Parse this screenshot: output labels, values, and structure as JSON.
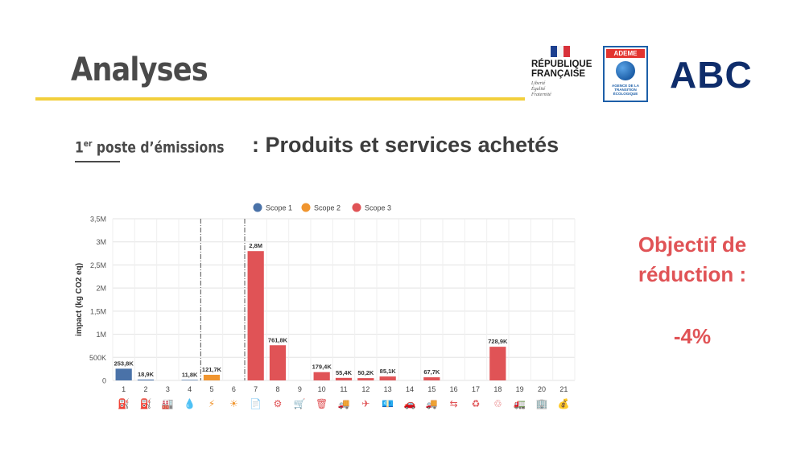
{
  "header": {
    "title": "Analyses",
    "logos": {
      "republique_lines": [
        "RÉPUBLIQUE",
        "FRANÇAISE"
      ],
      "republique_motto": [
        "Liberté",
        "Égalité",
        "Fraternité"
      ],
      "ademe_label": "ADEME",
      "ademe_sub": [
        "AGENCE DE LA",
        "TRANSITION",
        "ÉCOLOGIQUE"
      ],
      "abc_label": "ABC"
    }
  },
  "section": {
    "tag_main": "1",
    "tag_sup": "er",
    "tag_rest": " poste d’émissions",
    "subtitle": ": Produits et services achetés"
  },
  "objective": {
    "line1": "Objectif de",
    "line2": "réduction :",
    "value": "-4%"
  },
  "colors": {
    "accent_line": "#f2cf3c",
    "scope1": "#4a72a8",
    "scope2": "#f0952f",
    "scope3": "#e05356",
    "objective": "#e05356"
  },
  "chart_data": {
    "type": "bar",
    "ylabel": "impact (kg CO2 eq)",
    "ylim": [
      0,
      3500000
    ],
    "yticks": [
      0,
      500000,
      1000000,
      1500000,
      2000000,
      2500000,
      3000000,
      3500000
    ],
    "ytick_labels": [
      "0",
      "500K",
      "1M",
      "1,5M",
      "2M",
      "2,5M",
      "3M",
      "3,5M"
    ],
    "grid": true,
    "legend_position": "top-center",
    "legend": [
      {
        "name": "Scope 1",
        "color": "#4a72a8"
      },
      {
        "name": "Scope 2",
        "color": "#f0952f"
      },
      {
        "name": "Scope 3",
        "color": "#e05356"
      }
    ],
    "categories": [
      "1",
      "2",
      "3",
      "4",
      "5",
      "6",
      "7",
      "8",
      "9",
      "10",
      "11",
      "12",
      "13",
      "14",
      "15",
      "16",
      "17",
      "18",
      "19",
      "20",
      "21"
    ],
    "values": [
      253800,
      18900,
      0,
      11800,
      121700,
      0,
      2800000,
      761800,
      0,
      179400,
      55400,
      50200,
      85100,
      0,
      67700,
      0,
      0,
      728900,
      0,
      0,
      0
    ],
    "scopes": [
      1,
      1,
      1,
      1,
      2,
      2,
      3,
      3,
      3,
      3,
      3,
      3,
      3,
      3,
      3,
      3,
      3,
      3,
      3,
      3,
      3
    ],
    "value_labels": [
      "253,8K",
      "18,9K",
      "",
      "11,8K",
      "121,7K",
      "",
      "2,8M",
      "761,8K",
      "",
      "179,4K",
      "55,4K",
      "50,2K",
      "85,1K",
      "",
      "67,7K",
      "",
      "",
      "728,9K",
      "",
      "",
      ""
    ],
    "scope_dividers_after": [
      4,
      6
    ],
    "category_icons": [
      "fuel-pump-icon",
      "fuel-station-icon",
      "factory-icon",
      "leak-icon",
      "electricity-icon",
      "heat-icon",
      "purchased-goods-icon",
      "capital-goods-icon",
      "cart-icon",
      "waste-icon",
      "freight-truck-icon",
      "travel-icon",
      "finance-icon",
      "commute-icon",
      "delivery-icon",
      "transfer-icon",
      "recycle-icon",
      "end-of-life-icon",
      "downstream-transport-icon",
      "leased-assets-icon",
      "investment-icon"
    ]
  }
}
